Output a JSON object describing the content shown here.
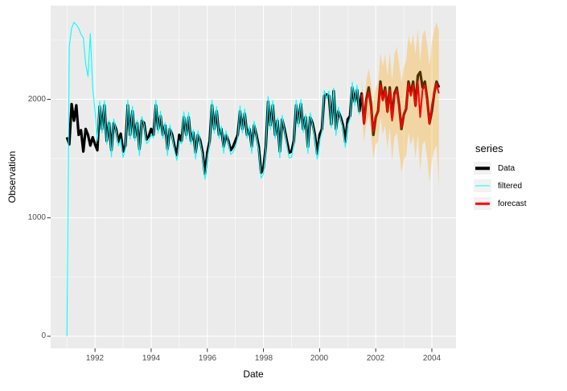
{
  "axes": {
    "x": {
      "label": "Date",
      "tick_labels": [
        "1992",
        "1994",
        "1996",
        "1998",
        "2000",
        "2002",
        "2004"
      ]
    },
    "y": {
      "label": "Observation",
      "tick_labels": [
        "0",
        "1000",
        "2000"
      ]
    }
  },
  "legend": {
    "title": "series",
    "items": [
      {
        "label": "Data",
        "color": "#000000",
        "line_width": 3.5
      },
      {
        "label": "filtered",
        "color": "#00ffff",
        "line_width": 1.2
      },
      {
        "label": "forecast",
        "color": "#ff0000",
        "line_width": 2.5
      }
    ]
  },
  "colors": {
    "panel_background": "#ebebeb",
    "gridline": "#ffffff",
    "tick_mark": "#333333",
    "axis_text": "#4d4d4d",
    "band_fill": "#ffa500",
    "band_opacity": 0.3
  },
  "chart_data": {
    "type": "line",
    "title": "",
    "xlabel": "Date",
    "ylabel": "Observation",
    "xlim": [
      1990.42,
      2004.86
    ],
    "ylim": [
      -102,
      2791
    ],
    "x_major_ticks": [
      1992,
      1994,
      1996,
      1998,
      2000,
      2002,
      2004
    ],
    "x_minor_ticks": [
      1991,
      1993,
      1995,
      1997,
      1999,
      2001,
      2003
    ],
    "y_major_ticks": [
      0,
      1000,
      2000
    ],
    "y_minor_ticks": [
      500,
      1500,
      2500
    ],
    "grid": true,
    "legend_position": "right",
    "series": [
      {
        "name": "Data",
        "color": "#000000",
        "width": 3.2,
        "start": 1991.0,
        "frequency": 12,
        "values": [
          1680,
          1620,
          1960,
          1820,
          1950,
          1700,
          1740,
          1560,
          1750,
          1700,
          1610,
          1680,
          1620,
          1570,
          1940,
          1750,
          1950,
          1650,
          1800,
          1570,
          1800,
          1750,
          1640,
          1710,
          1560,
          1610,
          1950,
          1700,
          1900,
          1680,
          1800,
          1580,
          1820,
          1800,
          1660,
          1690,
          1750,
          1700,
          1950,
          1750,
          1860,
          1700,
          1780,
          1580,
          1750,
          1700,
          1600,
          1530,
          1700,
          1650,
          1850,
          1700,
          1850,
          1650,
          1720,
          1550,
          1700,
          1650,
          1550,
          1370,
          1550,
          1650,
          1950,
          1750,
          1900,
          1700,
          1750,
          1600,
          1700,
          1650,
          1570,
          1600,
          1650,
          1700,
          1900,
          1750,
          1880,
          1700,
          1750,
          1600,
          1780,
          1700,
          1600,
          1380,
          1420,
          1600,
          1980,
          1780,
          1950,
          1700,
          1820,
          1560,
          1830,
          1750,
          1650,
          1550,
          1560,
          1650,
          1950,
          1800,
          1960,
          1750,
          1850,
          1600,
          1850,
          1800,
          1700,
          1540,
          1700,
          1750,
          2030,
          2040,
          2030,
          1790,
          2070,
          1750,
          1900,
          1850,
          1780,
          1640,
          1830,
          1860,
          2100,
          1980,
          2080,
          1900,
          2050,
          1800,
          2000,
          2100,
          1950,
          1700,
          1850,
          1900,
          2150,
          2000,
          2100,
          1900,
          2100,
          1850,
          2050,
          2100,
          1950,
          1750,
          1870,
          1920,
          2150,
          2050,
          2150,
          1950,
          2200,
          2230,
          2100,
          2150,
          2000,
          1800,
          1900,
          2050,
          2150,
          2100
        ]
      },
      {
        "name": "filtered",
        "color": "#00ffff",
        "width": 1.1,
        "start": 1991.0,
        "frequency": 12,
        "values": [
          0,
          2450,
          2600,
          2650,
          2630,
          2600,
          2550,
          2520,
          2300,
          2194,
          2555,
          2100,
          1900,
          1650,
          1985,
          1715,
          1990,
          1620,
          1825,
          1515,
          1835,
          1735,
          1605,
          1665,
          1510,
          1585,
          1995,
          1665,
          1940,
          1650,
          1825,
          1525,
          1855,
          1785,
          1625,
          1645,
          1700,
          1675,
          1995,
          1715,
          1900,
          1670,
          1805,
          1525,
          1785,
          1685,
          1565,
          1485,
          1650,
          1625,
          1895,
          1665,
          1890,
          1620,
          1745,
          1495,
          1735,
          1635,
          1515,
          1325,
          1500,
          1625,
          1995,
          1715,
          1940,
          1670,
          1775,
          1545,
          1735,
          1635,
          1535,
          1555,
          1600,
          1675,
          1945,
          1715,
          1920,
          1670,
          1775,
          1545,
          1815,
          1685,
          1565,
          1335,
          1370,
          1575,
          2025,
          1745,
          1990,
          1670,
          1845,
          1505,
          1865,
          1735,
          1615,
          1505,
          1510,
          1625,
          1995,
          1765,
          2000,
          1720,
          1875,
          1545,
          1885,
          1785,
          1665,
          1495,
          1650,
          1725,
          2075,
          2005,
          2070,
          1760,
          2095,
          1695,
          1935,
          1835,
          1745,
          1595,
          1780,
          1835,
          2145,
          1945,
          2120,
          1870
        ]
      },
      {
        "name": "forecast",
        "color": "#ff0000",
        "width": 2,
        "start": 2001.5,
        "frequency": 12,
        "values": [
          2040,
          1790,
          1980,
          2060,
          1920,
          1730,
          1860,
          1890,
          2120,
          1990,
          2080,
          1890,
          2080,
          1820,
          2030,
          2080,
          1930,
          1760,
          1880,
          1930,
          2130,
          2030,
          2120,
          1940,
          2150,
          1850,
          2080,
          2120,
          1980,
          1790,
          1950,
          2060,
          2130,
          2050
        ]
      }
    ],
    "band": {
      "name": "forecast-interval",
      "color": "#ffa500",
      "opacity": 0.3,
      "start": 2001.5,
      "frequency": 12,
      "lower": [
        1900,
        1640,
        1800,
        1860,
        1700,
        1500,
        1620,
        1640,
        1850,
        1700,
        1780,
        1580,
        1760,
        1480,
        1680,
        1720,
        1560,
        1380,
        1490,
        1530,
        1720,
        1610,
        1690,
        1500,
        1700,
        1390,
        1620,
        1650,
        1500,
        1300,
        1480,
        1570,
        1610,
        1250
      ],
      "upper": [
        2180,
        1950,
        2160,
        2260,
        2140,
        1960,
        2100,
        2140,
        2390,
        2280,
        2380,
        2200,
        2400,
        2160,
        2380,
        2440,
        2300,
        2140,
        2270,
        2330,
        2540,
        2450,
        2550,
        2380,
        2600,
        2310,
        2540,
        2590,
        2460,
        2280,
        2480,
        2590,
        2650,
        2580
      ]
    }
  }
}
